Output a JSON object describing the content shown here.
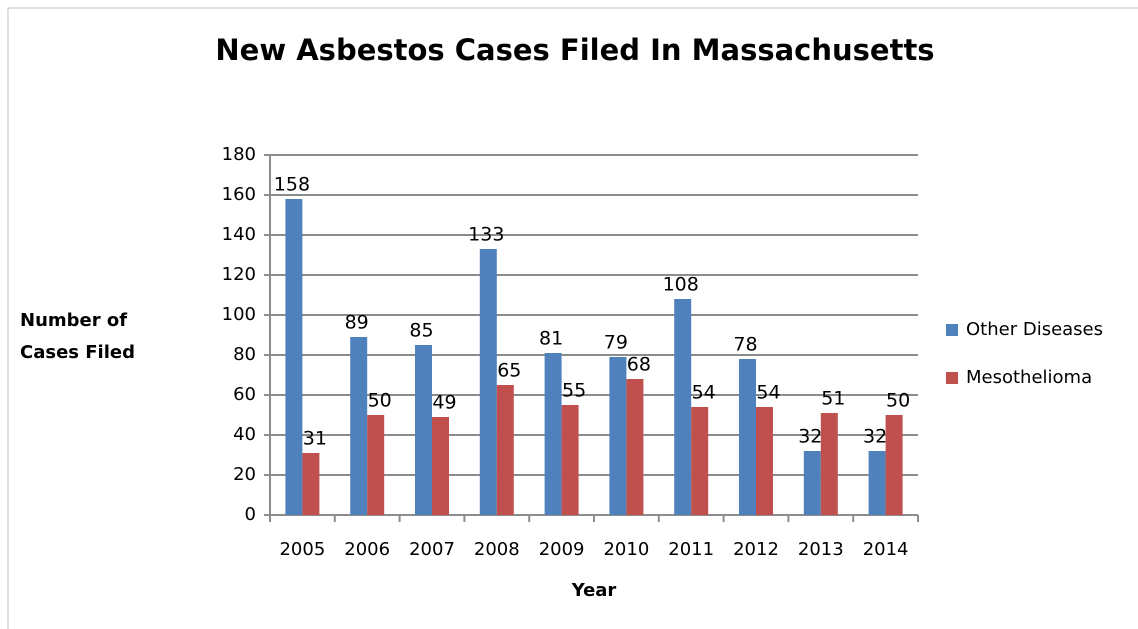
{
  "chart_data": {
    "type": "bar",
    "title": "New Asbestos Cases Filed In Massachusetts",
    "x_label": "Year",
    "y_label": "Number of Cases Filed",
    "categories": [
      "2005",
      "2006",
      "2007",
      "2008",
      "2009",
      "2010",
      "2011",
      "2012",
      "2013",
      "2014"
    ],
    "series": [
      {
        "name": "Other Diseases",
        "color": "#4f81bd",
        "values": [
          158,
          89,
          85,
          133,
          81,
          79,
          108,
          78,
          32,
          32
        ]
      },
      {
        "name": "Mesothelioma",
        "color": "#c0504d",
        "values": [
          31,
          50,
          49,
          65,
          55,
          68,
          54,
          54,
          51,
          50
        ]
      }
    ],
    "ylim": [
      0,
      180
    ],
    "yticks": [
      0,
      20,
      40,
      60,
      80,
      100,
      120,
      140,
      160,
      180
    ],
    "grid": true,
    "legend": "right"
  }
}
